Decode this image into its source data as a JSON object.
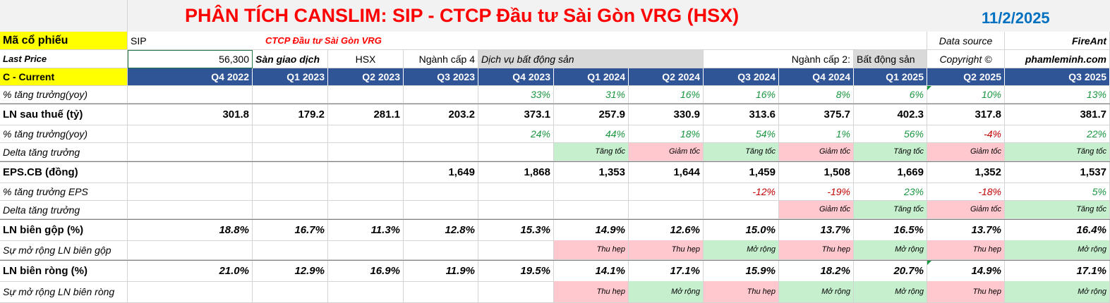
{
  "title": "PHÂN TÍCH CANSLIM: SIP - CTCP Đầu tư Sài Gòn VRG (HSX)",
  "date": "11/2/2025",
  "info": {
    "ticker_label": "Mã cổ phiếu",
    "ticker": "SIP",
    "company": "CTCP Đầu tư Sài Gòn VRG",
    "datasource_label": "Data source",
    "datasource": "FireAnt",
    "lastprice_label": "Last Price",
    "lastprice": "56,300",
    "exchange_label": "Sàn giao dịch",
    "exchange": "HSX",
    "sector4_label": "Ngành cấp 4",
    "sector4": "Dịch vụ bất động sản",
    "sector2_label": "Ngành cấp 2:",
    "sector2": "Bất động sản",
    "copyright_label": "Copyright ©",
    "copyright": "phamleminh.com"
  },
  "header_label": "C - Current",
  "quarters": [
    "Q4 2022",
    "Q1 2023",
    "Q2 2023",
    "Q3 2023",
    "Q4 2023",
    "Q1 2024",
    "Q2 2024",
    "Q3 2024",
    "Q4 2024",
    "Q1 2025",
    "Q2 2025",
    "Q3 2025"
  ],
  "rows": {
    "rev_growth": {
      "label": "% tăng trưởng(yoy)",
      "values": [
        "",
        "",
        "",
        "",
        "33%",
        "31%",
        "16%",
        "16%",
        "8%",
        "6%",
        "10%",
        "13%"
      ]
    },
    "profit": {
      "label": "LN sau thuế (tỷ)",
      "values": [
        "301.8",
        "179.2",
        "281.1",
        "203.2",
        "373.1",
        "257.9",
        "330.9",
        "313.6",
        "375.7",
        "402.3",
        "317.8",
        "381.7"
      ]
    },
    "profit_growth": {
      "label": "% tăng trưởng(yoy)",
      "values": [
        "",
        "",
        "",
        "",
        "24%",
        "44%",
        "18%",
        "54%",
        "1%",
        "56%",
        "-4%",
        "22%"
      ]
    },
    "profit_delta": {
      "label": "Delta tăng trưởng",
      "values": [
        "",
        "",
        "",
        "",
        "",
        "Tăng tốc",
        "Giảm tốc",
        "Tăng tốc",
        "Giảm tốc",
        "Tăng tốc",
        "Giảm tốc",
        "Tăng tốc"
      ]
    },
    "eps": {
      "label": "EPS.CB (đồng)",
      "values": [
        "",
        "",
        "",
        "1,649",
        "1,868",
        "1,353",
        "1,644",
        "1,459",
        "1,508",
        "1,669",
        "1,352",
        "1,537"
      ]
    },
    "eps_growth": {
      "label": "% tăng trưởng EPS",
      "values": [
        "",
        "",
        "",
        "",
        "",
        "",
        "",
        "-12%",
        "-19%",
        "23%",
        "-18%",
        "5%"
      ]
    },
    "eps_delta": {
      "label": "Delta tăng trưởng",
      "values": [
        "",
        "",
        "",
        "",
        "",
        "",
        "",
        "",
        "Giảm tốc",
        "Tăng tốc",
        "Giảm tốc",
        "Tăng tốc"
      ]
    },
    "gross_margin": {
      "label": "LN biên gộp (%)",
      "values": [
        "18.8%",
        "16.7%",
        "11.3%",
        "12.8%",
        "15.3%",
        "14.9%",
        "12.6%",
        "15.0%",
        "13.7%",
        "16.5%",
        "13.7%",
        "16.4%"
      ]
    },
    "gross_exp": {
      "label": "Sự mở rộng LN biên gộp",
      "values": [
        "",
        "",
        "",
        "",
        "",
        "Thu hẹp",
        "Thu hẹp",
        "Mở rộng",
        "Thu hẹp",
        "Mở rộng",
        "Thu hẹp",
        "Mở rộng"
      ]
    },
    "net_margin": {
      "label": "LN biên ròng (%)",
      "values": [
        "21.0%",
        "12.9%",
        "16.9%",
        "11.9%",
        "19.5%",
        "14.1%",
        "17.1%",
        "15.9%",
        "18.2%",
        "20.7%",
        "14.9%",
        "17.1%"
      ]
    },
    "net_exp": {
      "label": "Sự mở rộng LN biên ròng",
      "values": [
        "",
        "",
        "",
        "",
        "",
        "Thu hẹp",
        "Mở rộng",
        "Thu hẹp",
        "Mở rộng",
        "Mở rộng",
        "Thu hẹp",
        "Mở rộng"
      ]
    }
  },
  "colors": {
    "header_blue": "#2f5597",
    "title_red": "#ff0000",
    "date_blue": "#0070c0",
    "positive": "#1a9641",
    "negative": "#c00000",
    "green_fill": "#c6efce",
    "red_fill": "#ffc7ce",
    "yellow": "#ffff00"
  }
}
